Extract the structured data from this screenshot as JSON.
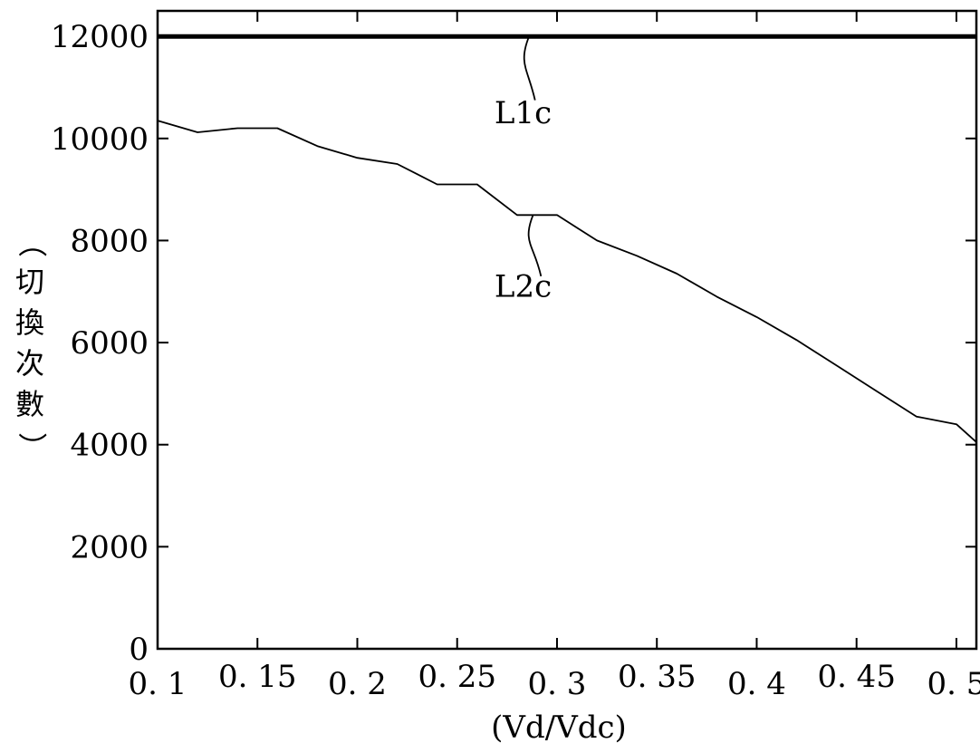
{
  "chart_data": {
    "type": "line",
    "xlabel": "(Vd/Vdc)",
    "ylabel": "（切換次數）",
    "xlim": [
      0.1,
      0.51
    ],
    "ylim": [
      0,
      12500
    ],
    "x_ticks": [
      0.1,
      0.15,
      0.2,
      0.25,
      0.3,
      0.35,
      0.4,
      0.45,
      0.5
    ],
    "x_tick_labels": [
      "0. 1",
      "0. 15",
      "0. 2",
      "0. 25",
      "0. 3",
      "0. 35",
      "0. 4",
      "0. 45",
      "0. 5"
    ],
    "y_ticks": [
      0,
      2000,
      4000,
      6000,
      8000,
      10000,
      12000
    ],
    "y_tick_labels": [
      "0",
      "2000",
      "4000",
      "6000",
      "8000",
      "10000",
      "12000"
    ],
    "grid": false,
    "series": [
      {
        "name": "L1c",
        "color": "#000000",
        "x": [
          0.1,
          0.51
        ],
        "y": [
          12000,
          12000
        ]
      },
      {
        "name": "L2c",
        "color": "#000000",
        "x": [
          0.1,
          0.12,
          0.14,
          0.16,
          0.18,
          0.2,
          0.22,
          0.23,
          0.24,
          0.26,
          0.28,
          0.3,
          0.32,
          0.34,
          0.36,
          0.38,
          0.4,
          0.42,
          0.44,
          0.46,
          0.48,
          0.5,
          0.51
        ],
        "y": [
          10350,
          10120,
          10200,
          10200,
          9850,
          9620,
          9500,
          9300,
          9100,
          9100,
          8500,
          8500,
          8000,
          7700,
          7350,
          6900,
          6500,
          6050,
          5550,
          5050,
          4550,
          4400,
          4050
        ]
      }
    ]
  }
}
